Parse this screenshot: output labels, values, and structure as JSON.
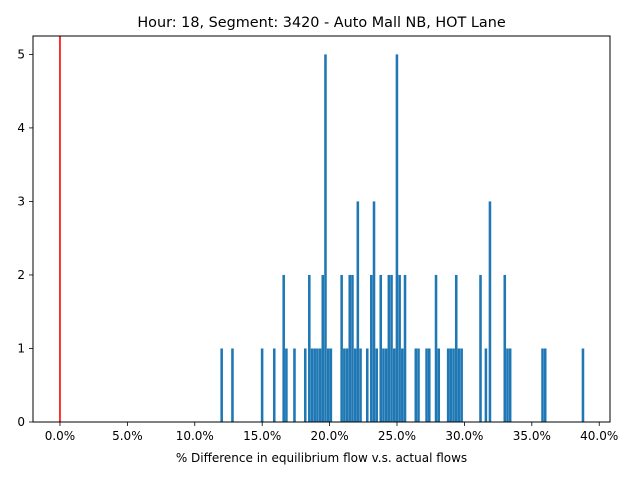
{
  "chart_data": {
    "type": "bar",
    "title": "Hour: 18, Segment: 3420 - Auto Mall NB, HOT Lane",
    "xlabel": "% Difference in equilibrium flow v.s. actual flows",
    "ylabel": "",
    "xlim": [
      -2.0,
      40.8
    ],
    "ylim": [
      0,
      5.25
    ],
    "x_ticks": [
      0,
      5,
      10,
      15,
      20,
      25,
      30,
      35,
      40
    ],
    "x_tick_labels": [
      "0.0%",
      "5.0%",
      "10.0%",
      "15.0%",
      "20.0%",
      "25.0%",
      "30.0%",
      "35.0%",
      "40.0%"
    ],
    "y_ticks": [
      0,
      1,
      2,
      3,
      4,
      5
    ],
    "y_tick_labels": [
      "0",
      "1",
      "2",
      "3",
      "4",
      "5"
    ],
    "bin_width": 0.19,
    "bar_color": "#1f77b4",
    "reference_line": {
      "x": 0,
      "color": "#ff0000"
    },
    "bins": [
      {
        "x": 11.9,
        "count": 1
      },
      {
        "x": 12.7,
        "count": 1
      },
      {
        "x": 14.9,
        "count": 1
      },
      {
        "x": 15.8,
        "count": 1
      },
      {
        "x": 16.5,
        "count": 2
      },
      {
        "x": 16.7,
        "count": 1
      },
      {
        "x": 17.3,
        "count": 1
      },
      {
        "x": 18.1,
        "count": 1
      },
      {
        "x": 18.4,
        "count": 2
      },
      {
        "x": 18.6,
        "count": 1
      },
      {
        "x": 18.8,
        "count": 1
      },
      {
        "x": 19.0,
        "count": 1
      },
      {
        "x": 19.2,
        "count": 1
      },
      {
        "x": 19.4,
        "count": 2
      },
      {
        "x": 19.6,
        "count": 5
      },
      {
        "x": 19.8,
        "count": 1
      },
      {
        "x": 20.0,
        "count": 1
      },
      {
        "x": 20.8,
        "count": 2
      },
      {
        "x": 21.0,
        "count": 1
      },
      {
        "x": 21.2,
        "count": 1
      },
      {
        "x": 21.4,
        "count": 2
      },
      {
        "x": 21.6,
        "count": 2
      },
      {
        "x": 21.8,
        "count": 1
      },
      {
        "x": 22.0,
        "count": 3
      },
      {
        "x": 22.2,
        "count": 1
      },
      {
        "x": 22.7,
        "count": 1
      },
      {
        "x": 23.0,
        "count": 2
      },
      {
        "x": 23.2,
        "count": 3
      },
      {
        "x": 23.4,
        "count": 1
      },
      {
        "x": 23.7,
        "count": 2
      },
      {
        "x": 23.9,
        "count": 1
      },
      {
        "x": 24.1,
        "count": 1
      },
      {
        "x": 24.3,
        "count": 2
      },
      {
        "x": 24.5,
        "count": 2
      },
      {
        "x": 24.7,
        "count": 1
      },
      {
        "x": 24.9,
        "count": 5
      },
      {
        "x": 25.1,
        "count": 2
      },
      {
        "x": 25.3,
        "count": 1
      },
      {
        "x": 25.5,
        "count": 2
      },
      {
        "x": 26.3,
        "count": 1
      },
      {
        "x": 26.5,
        "count": 1
      },
      {
        "x": 27.1,
        "count": 1
      },
      {
        "x": 27.3,
        "count": 1
      },
      {
        "x": 27.8,
        "count": 2
      },
      {
        "x": 28.0,
        "count": 1
      },
      {
        "x": 28.7,
        "count": 1
      },
      {
        "x": 28.9,
        "count": 1
      },
      {
        "x": 29.1,
        "count": 1
      },
      {
        "x": 29.3,
        "count": 2
      },
      {
        "x": 29.5,
        "count": 1
      },
      {
        "x": 29.7,
        "count": 1
      },
      {
        "x": 31.1,
        "count": 2
      },
      {
        "x": 31.5,
        "count": 1
      },
      {
        "x": 31.8,
        "count": 3
      },
      {
        "x": 32.9,
        "count": 2
      },
      {
        "x": 33.1,
        "count": 1
      },
      {
        "x": 33.3,
        "count": 1
      },
      {
        "x": 35.7,
        "count": 1
      },
      {
        "x": 35.9,
        "count": 1
      },
      {
        "x": 38.7,
        "count": 1
      }
    ]
  }
}
